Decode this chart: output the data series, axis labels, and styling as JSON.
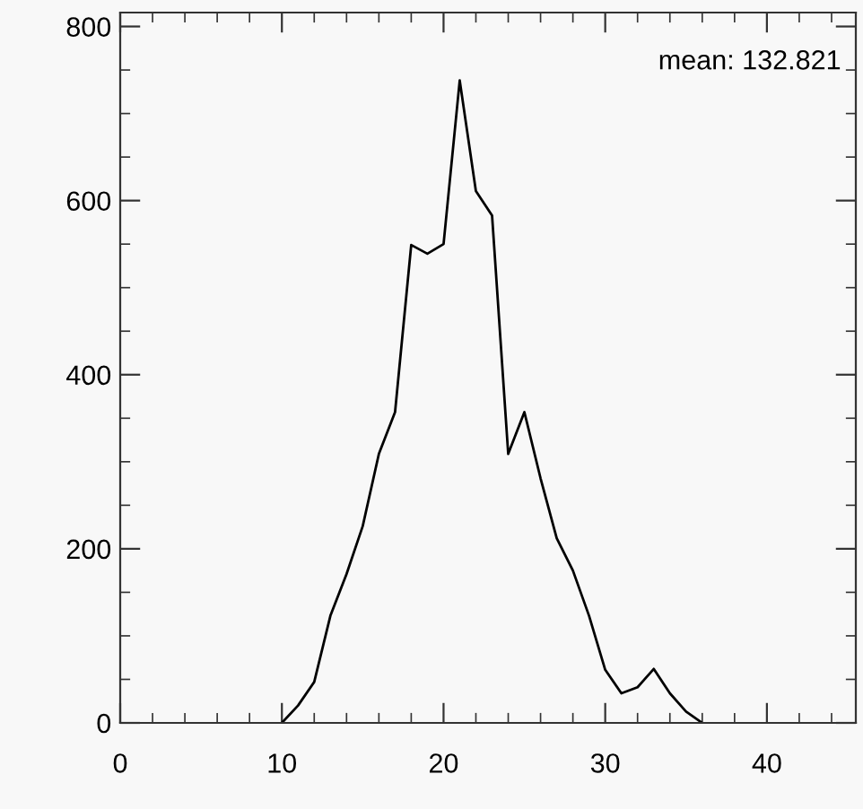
{
  "chart_data": {
    "type": "line",
    "x": [
      10,
      11,
      12,
      13,
      14,
      15,
      16,
      17,
      18,
      19,
      20,
      21,
      22,
      23,
      24,
      25,
      26,
      27,
      28,
      29,
      30,
      31,
      32,
      33,
      34,
      35,
      36
    ],
    "series": [
      {
        "color": "#000000",
        "values": [
          0,
          20,
          47,
          123,
          171,
          226,
          309,
          357,
          549,
          539,
          550,
          738,
          611,
          583,
          309,
          357,
          281,
          212,
          175,
          123,
          61,
          34,
          41,
          62,
          34,
          13,
          0
        ]
      }
    ],
    "xlim": [
      0,
      45.5
    ],
    "ylim": [
      0,
      816
    ],
    "xticks": [
      0,
      10,
      20,
      30,
      40
    ],
    "yticks": [
      0,
      200,
      400,
      600,
      800
    ],
    "annotations": [
      "mean: 132.821"
    ],
    "grid": false,
    "marker": "none",
    "line_style": "solid"
  }
}
